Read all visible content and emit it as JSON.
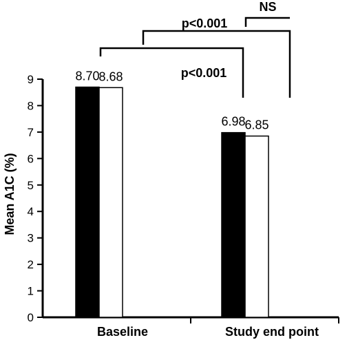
{
  "chart_data": {
    "type": "bar",
    "categories": [
      "Baseline",
      "Study end point"
    ],
    "series": [
      {
        "values": [
          8.7,
          6.98
        ],
        "color": "#000000"
      },
      {
        "values": [
          8.68,
          6.85
        ],
        "color": "#ffffff"
      }
    ],
    "data_labels": [
      [
        "8.70",
        "6.98"
      ],
      [
        "8.68",
        "6.85"
      ]
    ],
    "ylabel": "Mean A1C (%)",
    "ylim": [
      0,
      9
    ],
    "yticks": [
      "0",
      "1",
      "2",
      "3",
      "4",
      "5",
      "6",
      "7",
      "8",
      "9"
    ],
    "annotations": [
      {
        "text": "p<0.001",
        "compares": "black Baseline vs black Study end point"
      },
      {
        "text": "p<0.001",
        "compares": "white Baseline vs white Study end point"
      },
      {
        "text": "NS",
        "compares": "black vs white at Study end point"
      }
    ],
    "grid": false,
    "legend": "none"
  }
}
